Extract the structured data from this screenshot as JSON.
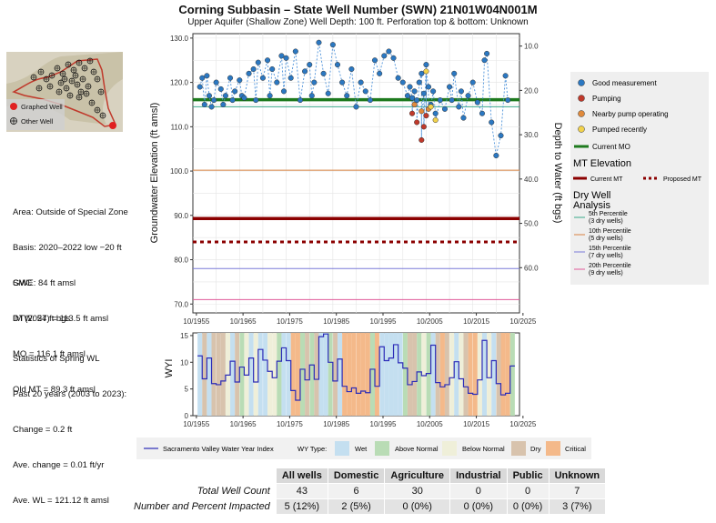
{
  "header": {
    "title": "Corning Subbasin – State Well Number (SWN) 21N01W04N001M",
    "subtitle": "Upper Aquifer (Shallow Zone)   Well Depth: 100 ft.  Perforation top & bottom: Unknown"
  },
  "map_legend": {
    "graphed": "Graphed Well",
    "other": "Other Well"
  },
  "info": {
    "area": "Area: Outside of Special Zone",
    "basis": "Basis: 2020–2022 low −20 ft",
    "gwe": "GWE: 84 ft amsl",
    "dtw": "DTW: 54 ft bgs",
    "smc_title": "SMC",
    "im": "IM (2027) = 113.5 ft amsl",
    "mo": "MO = 116.1 ft amsl",
    "old_mt": "Old MT = 89.3 ft amsl",
    "stats_title": "Statistics of Spring WL",
    "stats_period": "Past 20 years (2003 to 2023):",
    "change": "Change = 0.2 ft",
    "ave_change": "Ave. change = 0.01 ft/yr",
    "ave_wl": "Ave. WL = 121.12 ft amsl"
  },
  "legend_right": {
    "good": "Good measurement",
    "pumping": "Pumping",
    "nearby": "Nearby pump operating",
    "pumped_recently": "Pumped recently",
    "current_mo": "Current MO",
    "mt_title": "MT Elevation",
    "current_mt": "Current MT",
    "proposed_mt": "Proposed MT",
    "dry_title_1": "Dry Well",
    "dry_title_2": "Analysis",
    "p5_a": "5th Percentile",
    "p5_b": "(3 dry wells)",
    "p10_a": "10th Percentile",
    "p10_b": "(5 dry wells)",
    "p15_a": "15th Percentile",
    "p15_b": "(7 dry wells)",
    "p20_a": "20th Percentile",
    "p20_b": "(9 dry wells)"
  },
  "bottom_legend": {
    "wyi_line": "Sacramento Valley Water Year Index",
    "wy_type": "WY Type:",
    "wet": "Wet",
    "above": "Above Normal",
    "below": "Below Normal",
    "dry": "Dry",
    "critical": "Critical"
  },
  "colors": {
    "good": "#2b78c2",
    "pumping": "#c0392b",
    "nearby": "#e08a3c",
    "pumped_recently": "#f2d24b",
    "mo": "#1e7a1e",
    "mt": "#8b0000",
    "proposed": "#8b0000",
    "p5": "#3aa88a",
    "p10": "#d98240",
    "p15": "#7b7bd8",
    "p20": "#e05a9a",
    "wet": "#c4dff0",
    "above": "#b9dcb5",
    "below": "#efefd9",
    "dry": "#d8c3ad",
    "critical": "#f4b98a",
    "wyi": "#2c2cb8"
  },
  "table": {
    "headers": [
      "All wells",
      "Domestic",
      "Agriculture",
      "Industrial",
      "Public",
      "Unknown"
    ],
    "rows": [
      {
        "label": "Total Well Count",
        "values": [
          "43",
          "6",
          "30",
          "0",
          "0",
          "7"
        ]
      },
      {
        "label": "Number and Percent Impacted",
        "values": [
          "5 (12%)",
          "2 (5%)",
          "0 (0%)",
          "0 (0%)",
          "0 (0%)",
          "3 (7%)"
        ]
      }
    ]
  },
  "chart_data": [
    {
      "type": "scatter",
      "ylabel": "Groundwater Elevation (ft amsl)",
      "y2label": "Depth to Water (ft bgs)",
      "xlim": [
        1955,
        2025
      ],
      "ylim": [
        68,
        131
      ],
      "x_ticks": [
        "10/1955",
        "10/1965",
        "10/1975",
        "10/1985",
        "10/1995",
        "10/2005",
        "10/2015",
        "10/2025"
      ],
      "y_ticks": [
        70,
        80,
        90,
        100,
        110,
        120,
        130
      ],
      "y_tick_labels": [
        "70.0",
        "80.0",
        "90.0",
        "100.0",
        "110.0",
        "120.0",
        "130.0"
      ],
      "y2_ticks": [
        "10.0",
        "20.0",
        "30.0",
        "40.0",
        "50.0",
        "60.0"
      ],
      "grid": true,
      "hlines": [
        {
          "name": "Current MO",
          "y": 116.1
        },
        {
          "name": "Current MT",
          "y": 89.3
        },
        {
          "name": "Proposed MT",
          "y": 84.0
        },
        {
          "name": "5th Percentile",
          "y": 114.5
        },
        {
          "name": "10th Percentile",
          "y": 100.2
        },
        {
          "name": "15th Percentile",
          "y": 78.0
        },
        {
          "name": "20th Percentile",
          "y": 71.0
        }
      ],
      "series": [
        {
          "name": "Good measurement",
          "points": [
            [
              1956.5,
              119
            ],
            [
              1957,
              121
            ],
            [
              1957.5,
              115
            ],
            [
              1958,
              121.5
            ],
            [
              1958.5,
              117
            ],
            [
              1959,
              114.5
            ],
            [
              1959.5,
              116
            ],
            [
              1960,
              120
            ],
            [
              1961,
              118.5
            ],
            [
              1961.5,
              115
            ],
            [
              1962,
              117
            ],
            [
              1963,
              121
            ],
            [
              1963.5,
              116
            ],
            [
              1964,
              118
            ],
            [
              1965,
              120.5
            ],
            [
              1965.5,
              117
            ],
            [
              1966,
              116.5
            ],
            [
              1967,
              122
            ],
            [
              1968,
              123
            ],
            [
              1968.5,
              116
            ],
            [
              1969,
              124.5
            ],
            [
              1970,
              121
            ],
            [
              1971,
              125
            ],
            [
              1971.5,
              117
            ],
            [
              1972,
              123
            ],
            [
              1973,
              120
            ],
            [
              1974,
              126
            ],
            [
              1974.5,
              118
            ],
            [
              1975,
              125.5
            ],
            [
              1976,
              121
            ],
            [
              1977,
              127
            ],
            [
              1978,
              116
            ],
            [
              1979,
              122.5
            ],
            [
              1980,
              124
            ],
            [
              1980.5,
              117
            ],
            [
              1981,
              120
            ],
            [
              1982,
              129
            ],
            [
              1983,
              122
            ],
            [
              1984,
              117.5
            ],
            [
              1985,
              128.5
            ],
            [
              1986,
              124
            ],
            [
              1987,
              120
            ],
            [
              1988,
              117
            ],
            [
              1989,
              123
            ],
            [
              1990,
              114.5
            ],
            [
              1991,
              120
            ],
            [
              1992,
              118
            ],
            [
              1993,
              116
            ],
            [
              1994,
              125
            ],
            [
              1995,
              122
            ],
            [
              1996,
              126
            ],
            [
              1997,
              127
            ],
            [
              1998,
              125.5
            ],
            [
              1999,
              121
            ],
            [
              2000,
              120
            ],
            [
              2001,
              117
            ],
            [
              2001.5,
              119
            ],
            [
              2002,
              116.5
            ],
            [
              2002.5,
              118
            ],
            [
              2003,
              116
            ],
            [
              2003.5,
              120
            ],
            [
              2004,
              122
            ],
            [
              2004.5,
              117.5
            ],
            [
              2005,
              124
            ],
            [
              2005.5,
              119
            ],
            [
              2006,
              115
            ],
            [
              2006.5,
              118
            ],
            [
              2007,
              113
            ],
            [
              2008,
              116
            ],
            [
              2009,
              114
            ],
            [
              2010,
              119
            ],
            [
              2010.5,
              116
            ],
            [
              2011,
              122
            ],
            [
              2012,
              114.5
            ],
            [
              2012.5,
              118
            ],
            [
              2013,
              112
            ],
            [
              2014,
              117
            ],
            [
              2015,
              120
            ],
            [
              2016,
              115.5
            ],
            [
              2017,
              113
            ],
            [
              2017.5,
              125
            ],
            [
              2018,
              126.5
            ],
            [
              2019,
              111
            ],
            [
              2020,
              103.5
            ],
            [
              2021,
              108
            ],
            [
              2022,
              121.5
            ],
            [
              2022.5,
              116
            ]
          ]
        },
        {
          "name": "Pumping",
          "points": [
            [
              2002,
              113
            ],
            [
              2003,
              111
            ],
            [
              2004,
              107
            ],
            [
              2004.5,
              110
            ],
            [
              2005,
              112.5
            ]
          ]
        },
        {
          "name": "Nearby pump operating",
          "points": [
            [
              2002.5,
              115
            ],
            [
              2004,
              113.5
            ],
            [
              2005.5,
              114
            ]
          ]
        },
        {
          "name": "Pumped recently",
          "points": [
            [
              2005,
              122.5
            ],
            [
              2006,
              114.5
            ],
            [
              2007,
              111.5
            ]
          ]
        }
      ]
    },
    {
      "type": "area",
      "ylabel": "WYI",
      "xlim": [
        1955,
        2025
      ],
      "ylim": [
        0,
        15.5
      ],
      "x_ticks": [
        "10/1955",
        "10/1965",
        "10/1975",
        "10/1985",
        "10/1995",
        "10/2005",
        "10/2015",
        "10/2025"
      ],
      "y_ticks": [
        0,
        5,
        10,
        15
      ],
      "x": [
        1956,
        1957,
        1958,
        1959,
        1960,
        1961,
        1962,
        1963,
        1964,
        1965,
        1966,
        1967,
        1968,
        1969,
        1970,
        1971,
        1972,
        1973,
        1974,
        1975,
        1976,
        1977,
        1978,
        1979,
        1980,
        1981,
        1982,
        1983,
        1984,
        1985,
        1986,
        1987,
        1988,
        1989,
        1990,
        1991,
        1992,
        1993,
        1994,
        1995,
        1996,
        1997,
        1998,
        1999,
        2000,
        2001,
        2002,
        2003,
        2004,
        2005,
        2006,
        2007,
        2008,
        2009,
        2010,
        2011,
        2012,
        2013,
        2014,
        2015,
        2016,
        2017,
        2018,
        2019,
        2020,
        2021,
        2022,
        2023
      ],
      "wyi": [
        11.2,
        6.9,
        10.8,
        6.0,
        5.8,
        6.5,
        7.6,
        10.2,
        6.3,
        9.1,
        7.6,
        10.8,
        6.3,
        12.4,
        10.4,
        8.3,
        7.1,
        10.2,
        12.7,
        10.3,
        4.7,
        2.9,
        8.7,
        6.7,
        9.5,
        6.8,
        14.8,
        15.3,
        10.0,
        6.5,
        10.6,
        5.5,
        4.5,
        5.2,
        4.2,
        4.6,
        4.3,
        8.7,
        5.5,
        12.9,
        10.3,
        10.8,
        13.3,
        9.9,
        8.9,
        5.8,
        6.4,
        8.2,
        7.5,
        7.9,
        13.2,
        6.2,
        5.4,
        5.8,
        7.1,
        10.1,
        6.9,
        5.4,
        4.2,
        4.0,
        6.7,
        14.1,
        7.1,
        10.3,
        6.0,
        3.9,
        4.2,
        9.3
      ],
      "wy_type": [
        "W",
        "D",
        "W",
        "D",
        "D",
        "D",
        "B",
        "W",
        "D",
        "A",
        "B",
        "W",
        "B",
        "W",
        "W",
        "B",
        "B",
        "A",
        "W",
        "W",
        "C",
        "C",
        "A",
        "D",
        "A",
        "D",
        "W",
        "W",
        "A",
        "D",
        "W",
        "C",
        "C",
        "C",
        "C",
        "C",
        "C",
        "A",
        "C",
        "W",
        "W",
        "W",
        "W",
        "W",
        "A",
        "D",
        "D",
        "A",
        "B",
        "A",
        "W",
        "D",
        "C",
        "D",
        "B",
        "W",
        "B",
        "D",
        "C",
        "C",
        "B",
        "W",
        "B",
        "W",
        "D",
        "C",
        "C",
        "A"
      ]
    }
  ]
}
